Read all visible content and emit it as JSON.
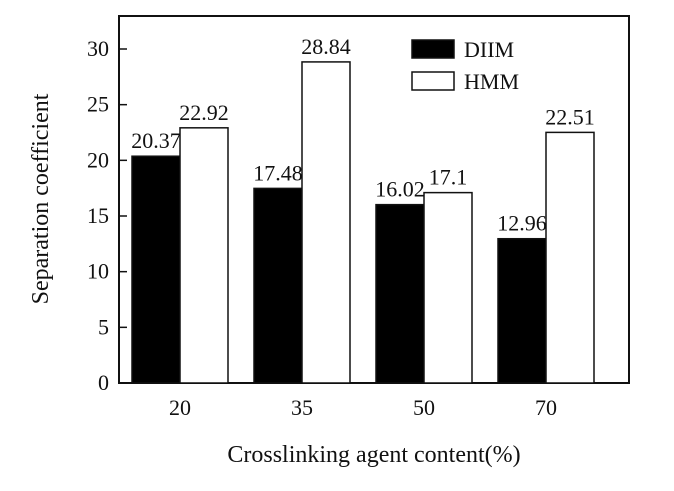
{
  "chart_data": {
    "type": "bar",
    "categories": [
      "20",
      "35",
      "50",
      "70"
    ],
    "series": [
      {
        "name": "DIIM",
        "values": [
          20.37,
          17.48,
          16.02,
          12.96
        ],
        "value_labels": [
          "20.37",
          "17.48",
          "16.02",
          "12.96"
        ],
        "fill": "#000000"
      },
      {
        "name": "HMM",
        "values": [
          22.92,
          28.84,
          17.1,
          22.51
        ],
        "value_labels": [
          "22.92",
          "28.84",
          "17.1",
          "22.51"
        ],
        "fill": "#ffffff"
      }
    ],
    "xlabel": "Crosslinking agent content(%)",
    "ylabel": "Separation coefficient",
    "ylim": [
      0,
      30
    ],
    "yticks": [
      0,
      5,
      10,
      15,
      20,
      25,
      30
    ],
    "grid": false,
    "legend_position": "top-right",
    "colors": {
      "axis": "#111111",
      "bar_stroke": "#111111"
    }
  }
}
